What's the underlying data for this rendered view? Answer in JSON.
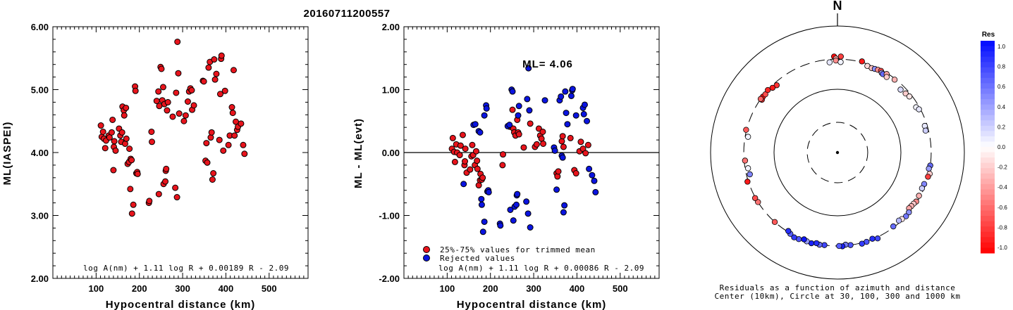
{
  "page_title": "20160711200557",
  "chart_data": [
    {
      "id": "panel1",
      "type": "scatter",
      "xlabel": "Hypocentral distance (km)",
      "ylabel": "ML(IASPEI)",
      "xlim": [
        0,
        590
      ],
      "ylim": [
        2.0,
        6.0
      ],
      "x_ticks": [
        100,
        200,
        300,
        400,
        500
      ],
      "y_ticks": [
        "2.00",
        "3.00",
        "4.00",
        "5.00",
        "6.00"
      ],
      "formula": "log A(nm) + 1.11 log R + 0.00189 R - 2.09",
      "marker_color": "#e8141c",
      "points": [
        [
          111,
          4.43
        ],
        [
          113,
          4.25
        ],
        [
          116,
          4.33
        ],
        [
          118,
          4.22
        ],
        [
          121,
          4.07
        ],
        [
          123,
          4.19
        ],
        [
          129,
          4.27
        ],
        [
          131,
          4.24
        ],
        [
          136,
          4.32
        ],
        [
          138,
          4.52
        ],
        [
          140,
          3.72
        ],
        [
          141,
          4.09
        ],
        [
          142,
          4.18
        ],
        [
          145,
          4.03
        ],
        [
          153,
          4.38
        ],
        [
          156,
          4.27
        ],
        [
          158,
          4.17
        ],
        [
          160,
          4.32
        ],
        [
          161,
          4.73
        ],
        [
          164,
          4.67
        ],
        [
          165,
          4.59
        ],
        [
          167,
          4.14
        ],
        [
          169,
          4.71
        ],
        [
          170,
          4.22
        ],
        [
          173,
          3.82
        ],
        [
          176,
          3.85
        ],
        [
          177,
          4.06
        ],
        [
          179,
          3.42
        ],
        [
          180,
          3.9
        ],
        [
          182,
          3.88
        ],
        [
          183,
          3.03
        ],
        [
          186,
          3.17
        ],
        [
          190,
          5.05
        ],
        [
          191,
          4.98
        ],
        [
          193,
          3.67
        ],
        [
          195,
          3.69
        ],
        [
          196,
          3.66
        ],
        [
          222,
          3.2
        ],
        [
          223,
          3.23
        ],
        [
          228,
          4.33
        ],
        [
          229,
          4.17
        ],
        [
          240,
          4.82
        ],
        [
          244,
          4.97
        ],
        [
          245,
          3.34
        ],
        [
          246,
          4.74
        ],
        [
          249,
          5.36
        ],
        [
          251,
          5.33
        ],
        [
          253,
          4.83
        ],
        [
          255,
          5.04
        ],
        [
          256,
          3.5
        ],
        [
          258,
          4.77
        ],
        [
          260,
          3.54
        ],
        [
          261,
          3.71
        ],
        [
          262,
          3.74
        ],
        [
          264,
          4.67
        ],
        [
          266,
          4.8
        ],
        [
          277,
          4.57
        ],
        [
          283,
          3.44
        ],
        [
          285,
          4.95
        ],
        [
          287,
          3.29
        ],
        [
          288,
          5.76
        ],
        [
          290,
          5.26
        ],
        [
          292,
          4.62
        ],
        [
          303,
          4.5
        ],
        [
          307,
          4.59
        ],
        [
          312,
          4.81
        ],
        [
          315,
          4.97
        ],
        [
          318,
          5.02
        ],
        [
          321,
          4.99
        ],
        [
          322,
          4.68
        ],
        [
          326,
          4.75
        ],
        [
          347,
          5.14
        ],
        [
          349,
          5.13
        ],
        [
          353,
          3.87
        ],
        [
          355,
          4.15
        ],
        [
          357,
          3.84
        ],
        [
          360,
          5.35
        ],
        [
          363,
          5.44
        ],
        [
          365,
          4.24
        ],
        [
          367,
          4.32
        ],
        [
          369,
          3.57
        ],
        [
          371,
          3.67
        ],
        [
          373,
          5.48
        ],
        [
          375,
          5.16
        ],
        [
          378,
          5.25
        ],
        [
          385,
          4.2
        ],
        [
          387,
          4.93
        ],
        [
          389,
          5.49
        ],
        [
          390,
          5.54
        ],
        [
          394,
          4.03
        ],
        [
          398,
          4.98
        ],
        [
          406,
          4.12
        ],
        [
          409,
          4.27
        ],
        [
          414,
          4.72
        ],
        [
          416,
          4.63
        ],
        [
          418,
          5.31
        ],
        [
          420,
          4.27
        ],
        [
          423,
          4.49
        ],
        [
          426,
          4.36
        ],
        [
          428,
          4.41
        ],
        [
          435,
          4.46
        ],
        [
          440,
          4.12
        ],
        [
          443,
          3.98
        ]
      ]
    },
    {
      "id": "panel2",
      "type": "scatter",
      "xlabel": "Hypocentral distance (km)",
      "ylabel": "ML - ML(evt)",
      "xlim": [
        0,
        590
      ],
      "ylim": [
        -2.0,
        2.0
      ],
      "x_ticks": [
        100,
        200,
        300,
        400,
        500
      ],
      "y_ticks": [
        "-2.00",
        "-1.00",
        "0.00",
        "1.00",
        "2.00"
      ],
      "annotation": "ML= 4.06",
      "formula": "log A(nm) + 1.11 log R + 0.00086 R - 2.09",
      "legend": [
        {
          "label": "25%-75% values for trimmed mean",
          "color": "#e8141c"
        },
        {
          "label": "Rejected values",
          "color": "#0a14e0"
        }
      ],
      "red_points": [
        [
          111,
          0.06
        ],
        [
          113,
          0.23
        ],
        [
          116,
          0.01
        ],
        [
          118,
          -0.15
        ],
        [
          121,
          0.13
        ],
        [
          123,
          0.0
        ],
        [
          129,
          -0.04
        ],
        [
          131,
          0.11
        ],
        [
          136,
          0.28
        ],
        [
          140,
          -0.2
        ],
        [
          141,
          -0.14
        ],
        [
          142,
          0.06
        ],
        [
          145,
          -0.32
        ],
        [
          153,
          -0.27
        ],
        [
          156,
          -0.06
        ],
        [
          158,
          0.12
        ],
        [
          160,
          -0.04
        ],
        [
          164,
          -0.2
        ],
        [
          167,
          0.02
        ],
        [
          169,
          -0.13
        ],
        [
          170,
          -0.26
        ],
        [
          173,
          -0.52
        ],
        [
          176,
          -0.44
        ],
        [
          177,
          -0.34
        ],
        [
          180,
          -0.43
        ],
        [
          182,
          -0.4
        ],
        [
          228,
          -0.2
        ],
        [
          229,
          -0.03
        ],
        [
          245,
          0.41
        ],
        [
          251,
          0.68
        ],
        [
          253,
          0.38
        ],
        [
          255,
          0.32
        ],
        [
          258,
          0.27
        ],
        [
          262,
          0.52
        ],
        [
          264,
          0.32
        ],
        [
          266,
          0.29
        ],
        [
          277,
          0.08
        ],
        [
          292,
          0.46
        ],
        [
          303,
          0.09
        ],
        [
          307,
          0.13
        ],
        [
          312,
          0.38
        ],
        [
          315,
          0.27
        ],
        [
          318,
          0.22
        ],
        [
          321,
          0.33
        ],
        [
          322,
          0.14
        ],
        [
          353,
          -0.33
        ],
        [
          355,
          -0.38
        ],
        [
          357,
          -0.3
        ],
        [
          365,
          0.18
        ],
        [
          367,
          0.26
        ],
        [
          369,
          0.09
        ],
        [
          385,
          0.23
        ],
        [
          394,
          -0.28
        ],
        [
          398,
          -0.33
        ],
        [
          406,
          0.02
        ],
        [
          409,
          0.17
        ],
        [
          414,
          0.06
        ],
        [
          420,
          -0.01
        ],
        [
          426,
          0.12
        ]
      ],
      "blue_points": [
        [
          138,
          -0.5
        ],
        [
          161,
          0.44
        ],
        [
          165,
          0.45
        ],
        [
          173,
          0.34
        ],
        [
          176,
          0.32
        ],
        [
          186,
          0.59
        ],
        [
          190,
          0.75
        ],
        [
          191,
          0.7
        ],
        [
          193,
          -0.62
        ],
        [
          195,
          -0.6
        ],
        [
          196,
          -0.63
        ],
        [
          179,
          -0.74
        ],
        [
          183,
          -1.26
        ],
        [
          186,
          -1.1
        ],
        [
          180,
          -0.83
        ],
        [
          222,
          -1.13
        ],
        [
          223,
          -1.16
        ],
        [
          240,
          0.42
        ],
        [
          244,
          0.44
        ],
        [
          246,
          -0.91
        ],
        [
          249,
          1.0
        ],
        [
          251,
          0.97
        ],
        [
          253,
          -1.08
        ],
        [
          256,
          -0.86
        ],
        [
          260,
          -0.83
        ],
        [
          261,
          -0.68
        ],
        [
          262,
          -0.66
        ],
        [
          264,
          0.59
        ],
        [
          266,
          0.74
        ],
        [
          283,
          -0.78
        ],
        [
          285,
          0.85
        ],
        [
          287,
          -0.97
        ],
        [
          288,
          1.34
        ],
        [
          290,
          0.67
        ],
        [
          292,
          -1.19
        ],
        [
          326,
          0.83
        ],
        [
          347,
          0.08
        ],
        [
          349,
          0.03
        ],
        [
          353,
          -0.59
        ],
        [
          360,
          0.83
        ],
        [
          363,
          0.89
        ],
        [
          365,
          -0.05
        ],
        [
          367,
          -0.08
        ],
        [
          369,
          -0.95
        ],
        [
          371,
          -0.84
        ],
        [
          373,
          0.97
        ],
        [
          375,
          0.63
        ],
        [
          378,
          0.45
        ],
        [
          387,
          0.9
        ],
        [
          389,
          0.99
        ],
        [
          390,
          1.01
        ],
        [
          398,
          0.59
        ],
        [
          414,
          0.71
        ],
        [
          416,
          0.61
        ],
        [
          418,
          0.76
        ],
        [
          423,
          0.5
        ],
        [
          428,
          -0.26
        ],
        [
          435,
          -0.36
        ],
        [
          440,
          -0.45
        ],
        [
          443,
          -0.63
        ]
      ]
    },
    {
      "id": "panel3",
      "type": "polar-scatter",
      "north_label": "N",
      "caption_line1": "Residuals as a function of azimuth and distance",
      "caption_line2": "Center (10km), Circle at 30, 100, 300 and 1000 km",
      "rings_km": [
        30,
        100,
        300,
        1000
      ],
      "colorbar_title": "Res",
      "colorbar_ticks": [
        "1.0",
        "0.8",
        "0.6",
        "0.4",
        "0.2",
        "0.0",
        "-0.2",
        "-0.4",
        "-0.6",
        "-0.8",
        "-1.0"
      ],
      "stations": [
        {
          "az": 305,
          "dist": 285,
          "res": -0.8
        },
        {
          "az": 307,
          "dist": 295,
          "res": -0.95
        },
        {
          "az": 309,
          "dist": 290,
          "res": -0.7
        },
        {
          "az": 312,
          "dist": 300,
          "res": -0.85
        },
        {
          "az": 305,
          "dist": 300,
          "res": -0.6
        },
        {
          "az": 318,
          "dist": 270,
          "res": -0.8
        },
        {
          "az": 315,
          "dist": 280,
          "res": -0.9
        },
        {
          "az": 358,
          "dist": 330,
          "res": -0.95
        },
        {
          "az": 2,
          "dist": 330,
          "res": -0.75
        },
        {
          "az": 359,
          "dist": 305,
          "res": -0.3
        },
        {
          "az": 359,
          "dist": 285,
          "res": -0.45
        },
        {
          "az": 355,
          "dist": 270,
          "res": 0.1
        },
        {
          "az": 2,
          "dist": 270,
          "res": 0.05
        },
        {
          "az": 15,
          "dist": 310,
          "res": -0.9
        },
        {
          "az": 19,
          "dist": 280,
          "res": -0.15
        },
        {
          "az": 22,
          "dist": 275,
          "res": -0.25
        },
        {
          "az": 24,
          "dist": 280,
          "res": 0.45
        },
        {
          "az": 26,
          "dist": 285,
          "res": -0.45
        },
        {
          "az": 28,
          "dist": 290,
          "res": -0.7
        },
        {
          "az": 29,
          "dist": 275,
          "res": 0.35
        },
        {
          "az": 30,
          "dist": 270,
          "res": 0.6
        },
        {
          "az": 32,
          "dist": 290,
          "res": -0.35
        },
        {
          "az": 33,
          "dist": 265,
          "res": -0.2
        },
        {
          "az": 38,
          "dist": 290,
          "res": -0.3
        },
        {
          "az": 45,
          "dist": 255,
          "res": 0.15
        },
        {
          "az": 49,
          "dist": 265,
          "res": -0.2
        },
        {
          "az": 52,
          "dist": 275,
          "res": -0.1
        },
        {
          "az": 60,
          "dist": 270,
          "res": 0.05
        },
        {
          "az": 62,
          "dist": 285,
          "res": 0.1
        },
        {
          "az": 73,
          "dist": 275,
          "res": 0.1
        },
        {
          "az": 76,
          "dist": 270,
          "res": 0.2
        },
        {
          "az": 98,
          "dist": 300,
          "res": 0.6
        },
        {
          "az": 100,
          "dist": 290,
          "res": 0.4
        },
        {
          "az": 103,
          "dist": 310,
          "res": -0.2
        },
        {
          "az": 105,
          "dist": 300,
          "res": -0.75
        },
        {
          "az": 110,
          "dist": 285,
          "res": 0.5
        },
        {
          "az": 113,
          "dist": 280,
          "res": 0.2
        },
        {
          "az": 118,
          "dist": 285,
          "res": -0.3
        },
        {
          "az": 122,
          "dist": 290,
          "res": -0.45
        },
        {
          "az": 124,
          "dist": 280,
          "res": -0.2
        },
        {
          "az": 126,
          "dist": 275,
          "res": -0.3
        },
        {
          "az": 128,
          "dist": 270,
          "res": -0.35
        },
        {
          "az": 130,
          "dist": 295,
          "res": 0.45
        },
        {
          "az": 133,
          "dist": 300,
          "res": 0.55
        },
        {
          "az": 136,
          "dist": 290,
          "res": -0.1
        },
        {
          "az": 138,
          "dist": 280,
          "res": 0.3
        },
        {
          "az": 143,
          "dist": 290,
          "res": 0.6
        },
        {
          "az": 155,
          "dist": 315,
          "res": 0.75
        },
        {
          "az": 158,
          "dist": 295,
          "res": 0.85
        },
        {
          "az": 162,
          "dist": 305,
          "res": 0.7
        },
        {
          "az": 165,
          "dist": 310,
          "res": 0.8
        },
        {
          "az": 172,
          "dist": 300,
          "res": 0.7
        },
        {
          "az": 175,
          "dist": 290,
          "res": 0.55
        },
        {
          "az": 177,
          "dist": 305,
          "res": 0.9
        },
        {
          "az": 179,
          "dist": 300,
          "res": 0.65
        },
        {
          "az": 188,
          "dist": 300,
          "res": 0.75
        },
        {
          "az": 191,
          "dist": 305,
          "res": 0.6
        },
        {
          "az": 193,
          "dist": 295,
          "res": 0.85
        },
        {
          "az": 196,
          "dist": 310,
          "res": 0.9
        },
        {
          "az": 199,
          "dist": 305,
          "res": 0.4
        },
        {
          "az": 201,
          "dist": 295,
          "res": 0.95
        },
        {
          "az": 204,
          "dist": 315,
          "res": 0.7
        },
        {
          "az": 207,
          "dist": 320,
          "res": 0.8
        },
        {
          "az": 210,
          "dist": 305,
          "res": 0.65
        },
        {
          "az": 212,
          "dist": 290,
          "res": 0.85
        },
        {
          "az": 222,
          "dist": 300,
          "res": -0.65
        },
        {
          "az": 238,
          "dist": 300,
          "res": -0.55
        },
        {
          "az": 241,
          "dist": 305,
          "res": -0.7
        },
        {
          "az": 252,
          "dist": 310,
          "res": -0.9
        },
        {
          "az": 256,
          "dist": 265,
          "res": 0.5
        },
        {
          "az": 260,
          "dist": 270,
          "res": 0.05
        },
        {
          "az": 265,
          "dist": 290,
          "res": -0.55
        },
        {
          "az": 280,
          "dist": 270,
          "res": 0.05
        },
        {
          "az": 284,
          "dist": 305,
          "res": -0.65
        }
      ]
    }
  ]
}
